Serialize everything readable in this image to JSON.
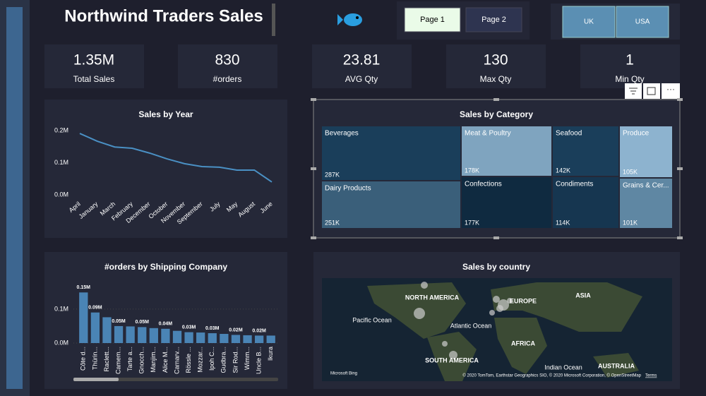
{
  "header": {
    "title": "Northwind Traders Sales"
  },
  "page_buttons": [
    "Page 1",
    "Page 2"
  ],
  "country_buttons": [
    "UK",
    "USA"
  ],
  "kpis": [
    {
      "value": "1.35M",
      "label": "Total Sales"
    },
    {
      "value": "830",
      "label": "#orders"
    },
    {
      "value": "23.81",
      "label": "AVG Qty"
    },
    {
      "value": "130",
      "label": "Max Qty"
    },
    {
      "value": "1",
      "label": "Min Qty"
    }
  ],
  "line_chart": {
    "type": "line",
    "title": "Sales by Year",
    "color": "#4a90c4",
    "categories": [
      "April",
      "January",
      "March",
      "February",
      "December",
      "October",
      "November",
      "September",
      "July",
      "May",
      "August",
      "June"
    ],
    "values": [
      191000,
      167000,
      149000,
      145000,
      130000,
      112000,
      97000,
      88000,
      86000,
      77000,
      77000,
      40000
    ],
    "ylim": [
      0,
      200000
    ],
    "yticks": [
      {
        "value": 0,
        "label": "0.0M"
      },
      {
        "value": 100000,
        "label": "0.1M"
      },
      {
        "value": 200000,
        "label": "0.2M"
      }
    ]
  },
  "bar_chart": {
    "type": "bar",
    "title": "#orders by Shipping Company",
    "color": "#4a84b5",
    "categories": [
      "Côte d...",
      "Thürin...",
      "Raclett...",
      "Camem...",
      "Tarte a...",
      "Gnocch...",
      "Manjim...",
      "Alice M...",
      "Carnarv...",
      "Rössle ...",
      "Mozzar...",
      "Ipoh C...",
      "Gudbra...",
      "Sir Rod...",
      "Wimm...",
      "Uncle B...",
      "Ikura"
    ],
    "values": [
      149000,
      90000,
      76000,
      50000,
      49000,
      47000,
      44000,
      42000,
      36000,
      32000,
      31000,
      29000,
      27000,
      24000,
      23000,
      22000,
      22000
    ],
    "value_labels": [
      "0.15M",
      "0.09M",
      null,
      "0.05M",
      null,
      "0.05M",
      null,
      "0.04M",
      null,
      "0.03M",
      null,
      "0.03M",
      null,
      "0.02M",
      null,
      "0.02M",
      null
    ],
    "ylim": [
      0,
      160000
    ],
    "yticks": [
      {
        "value": 0,
        "label": "0.0M"
      },
      {
        "value": 100000,
        "label": "0.1M"
      }
    ]
  },
  "treemap": {
    "type": "treemap",
    "title": "Sales by Category",
    "items": [
      {
        "name": "Beverages",
        "value": 287000,
        "value_label": "287K",
        "color": "#1a3e5a"
      },
      {
        "name": "Meat & Poultry",
        "value": 178000,
        "value_label": "178K",
        "color": "#7fa4bf"
      },
      {
        "name": "Seafood",
        "value": 142000,
        "value_label": "142K",
        "color": "#1a3e5a"
      },
      {
        "name": "Produce",
        "value": 105000,
        "value_label": "105K",
        "color": "#8db3cf"
      },
      {
        "name": "Dairy Products",
        "value": 251000,
        "value_label": "251K",
        "color": "#3a5f7a"
      },
      {
        "name": "Confections",
        "value": 177000,
        "value_label": "177K",
        "color": "#0f2a40"
      },
      {
        "name": "Condiments",
        "value": 114000,
        "value_label": "114K",
        "color": "#163650"
      },
      {
        "name": "Grains & Cer...",
        "value": 101000,
        "value_label": "101K",
        "color": "#5f87a3"
      }
    ]
  },
  "map": {
    "title": "Sales by country",
    "labels": [
      "NORTH AMERICA",
      "EUROPE",
      "ASIA",
      "Pacific Ocean",
      "Atlantic Ocean",
      "AFRICA",
      "SOUTH AMERICA",
      "Indian Ocean",
      "AUSTRALIA"
    ],
    "attribution": "© 2020 TomTom, Earthstar Geographics SIO, © 2020 Microsoft Corporation, © OpenStreetMap",
    "terms": "Terms",
    "brand": "Microsoft Bing"
  }
}
